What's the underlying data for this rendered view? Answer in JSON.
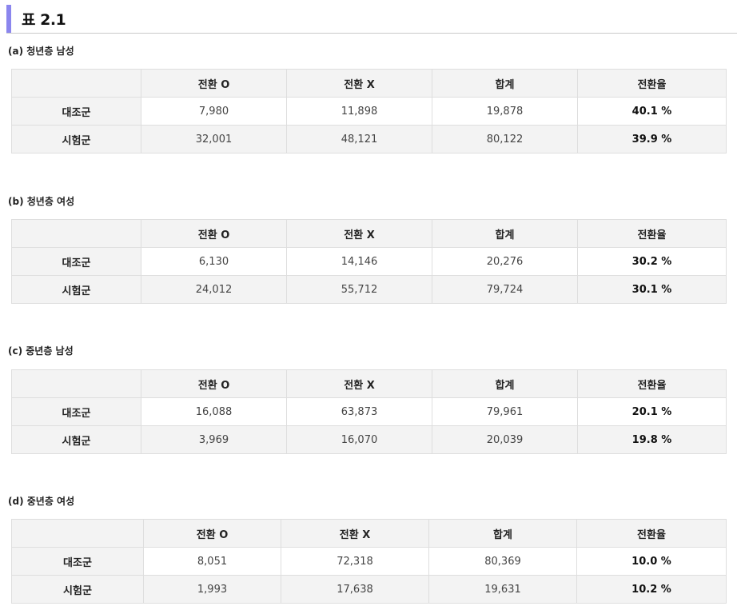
{
  "heading": {
    "title": "표 2.1"
  },
  "tables": [
    {
      "caption": "(a) 청년층 남성",
      "columns": [
        "",
        "전환 O",
        "전환 X",
        "합계",
        "전환율"
      ],
      "rows": [
        {
          "label": "대조군",
          "cells": [
            "7,980",
            "11,898",
            "19,878",
            "40.1 %"
          ]
        },
        {
          "label": "시험군",
          "cells": [
            "32,001",
            "48,121",
            "80,122",
            "39.9 %"
          ]
        }
      ]
    },
    {
      "caption": "(b) 청년층 여성",
      "columns": [
        "",
        "전환 O",
        "전환 X",
        "합계",
        "전환율"
      ],
      "rows": [
        {
          "label": "대조군",
          "cells": [
            "6,130",
            "14,146",
            "20,276",
            "30.2 %"
          ]
        },
        {
          "label": "시험군",
          "cells": [
            "24,012",
            "55,712",
            "79,724",
            "30.1 %"
          ]
        }
      ]
    },
    {
      "caption": "(c) 중년층 남성",
      "columns": [
        "",
        "전환 O",
        "전환 X",
        "합계",
        "전환율"
      ],
      "rows": [
        {
          "label": "대조군",
          "cells": [
            "16,088",
            "63,873",
            "79,961",
            "20.1 %"
          ]
        },
        {
          "label": "시험군",
          "cells": [
            "3,969",
            "16,070",
            "20,039",
            "19.8 %"
          ]
        }
      ]
    },
    {
      "caption": "(d) 중년층 여성",
      "columns": [
        "",
        "전환 O",
        "전환 X",
        "합계",
        "전환율"
      ],
      "rows": [
        {
          "label": "대조군",
          "cells": [
            "8,051",
            "72,318",
            "80,369",
            "10.0 %"
          ]
        },
        {
          "label": "시험군",
          "cells": [
            "1,993",
            "17,638",
            "19,631",
            "10.2 %"
          ]
        }
      ]
    }
  ]
}
